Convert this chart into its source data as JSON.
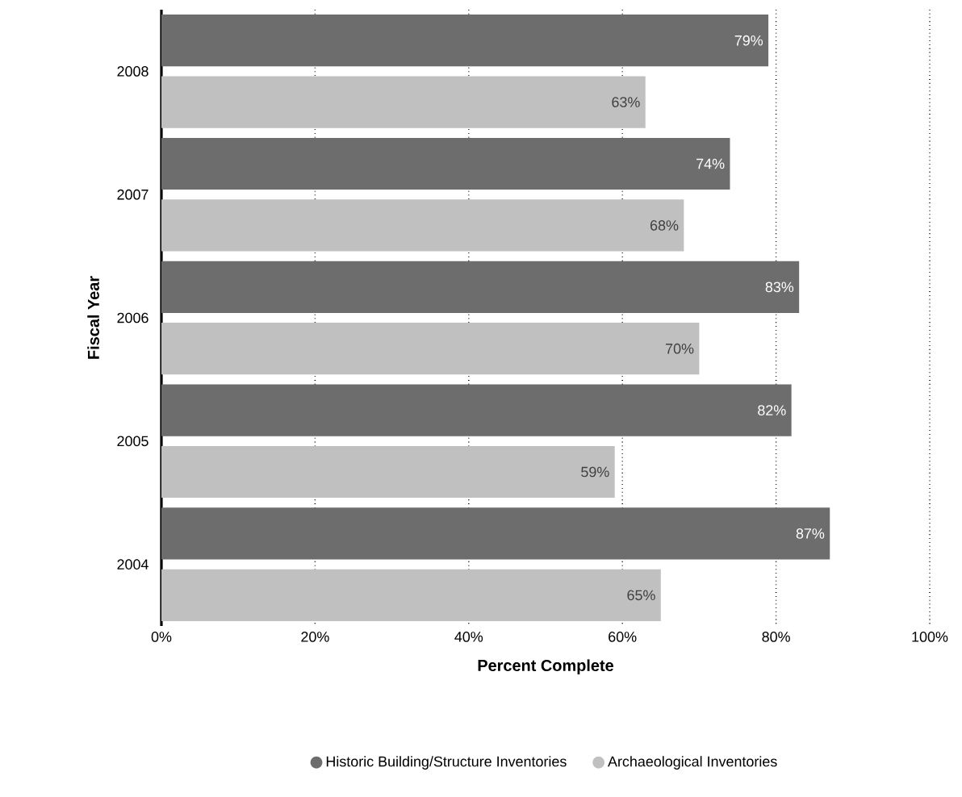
{
  "chart_data": {
    "type": "bar",
    "orientation": "horizontal",
    "xlabel": "Percent Complete",
    "ylabel": "Fiscal Year",
    "categories": [
      "2008",
      "2007",
      "2006",
      "2005",
      "2004"
    ],
    "series": [
      {
        "name": "Historic Building/Structure Inventories",
        "color": "#6d6d6d",
        "values": [
          79,
          74,
          83,
          82,
          87
        ],
        "value_labels": [
          "79%",
          "74%",
          "83%",
          "82%",
          "87%"
        ]
      },
      {
        "name": "Archaeological Inventories",
        "color": "#c0c0c0",
        "values": [
          63,
          68,
          70,
          59,
          65
        ],
        "value_labels": [
          "63%",
          "68%",
          "70%",
          "59%",
          "65%"
        ]
      }
    ],
    "xlim": [
      0,
      100
    ],
    "xticks": [
      {
        "value": 0,
        "label": "0%"
      },
      {
        "value": 20,
        "label": "20%"
      },
      {
        "value": 40,
        "label": "40%"
      },
      {
        "value": 60,
        "label": "60%"
      },
      {
        "value": 80,
        "label": "80%"
      },
      {
        "value": 100,
        "label": "100%"
      }
    ],
    "grid": "x",
    "legend": "bottom"
  }
}
